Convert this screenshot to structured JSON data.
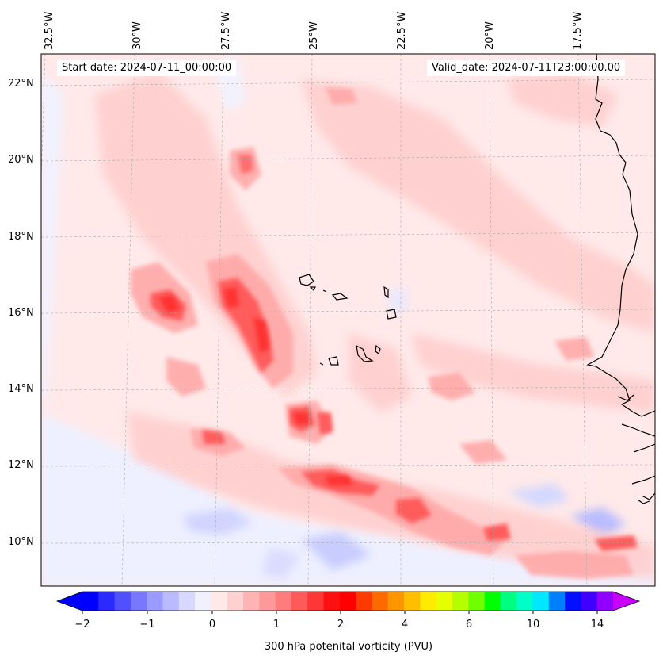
{
  "header": {
    "start_date": "Start date: 2024-07-11_00:00:00",
    "valid_date": "Valid_date: 2024-07-11T23:00:00.00"
  },
  "axes": {
    "longitude_labels": [
      "32.5°W",
      "30°W",
      "27.5°W",
      "25°W",
      "22.5°W",
      "20°W",
      "17.5°W"
    ],
    "latitude_labels": [
      "22°N",
      "20°N",
      "18°N",
      "16°N",
      "14°N",
      "12°N",
      "10°N"
    ]
  },
  "colorbar": {
    "title": "300 hPa potenital vorticity (PVU)",
    "tick_labels": [
      "−2",
      "−1",
      "0",
      "1",
      "2",
      "4",
      "6",
      "10",
      "14"
    ],
    "colors": [
      "#0000ff",
      "#2a2aff",
      "#5050ff",
      "#7878ff",
      "#9a9aff",
      "#babaff",
      "#d8d8ff",
      "#f0f0ff",
      "#ffe8e8",
      "#ffd0d0",
      "#ffb4b4",
      "#ff9898",
      "#ff7c7c",
      "#ff5a5a",
      "#ff3636",
      "#ff1010",
      "#ff0000",
      "#ff3a00",
      "#ff6a00",
      "#ff9600",
      "#ffbe00",
      "#ffea00",
      "#e6ff00",
      "#b4ff00",
      "#70ff00",
      "#00ff00",
      "#00ff80",
      "#00ffc8",
      "#00e8ff",
      "#0080ff",
      "#0010ff",
      "#4000ff",
      "#9000ff"
    ],
    "under_color": "#0000ff",
    "over_color": "#c800ff"
  },
  "map": {
    "background_color": "#ffeaea",
    "coastline_color": "#000000"
  }
}
